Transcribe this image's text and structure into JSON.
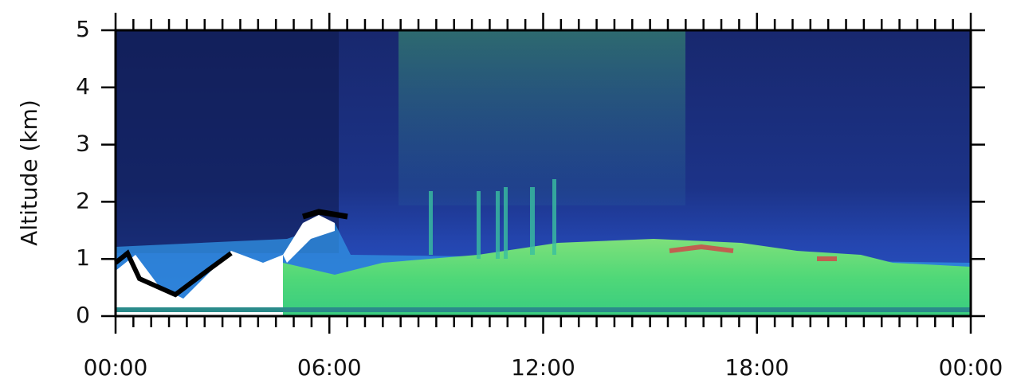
{
  "chart_data": {
    "type": "image",
    "y_label": "Altitude (km)",
    "xlim": [
      0,
      24
    ],
    "xticks": [
      {
        "value": 0,
        "label": "00:00"
      },
      {
        "value": 6,
        "label": "06:00"
      },
      {
        "value": 12,
        "label": "12:00"
      },
      {
        "value": 18,
        "label": "18:00"
      },
      {
        "value": 24,
        "label": "00:00"
      }
    ],
    "xminorticks": [
      0.5,
      1,
      1.5,
      2,
      2.5,
      3,
      3.5,
      4,
      4.5,
      5,
      5.5,
      6.5,
      7,
      7.5,
      8,
      8.5,
      9,
      9.5,
      10,
      10.5,
      11,
      11.5,
      12.5,
      13,
      13.5,
      14,
      14.5,
      15,
      15.5,
      16,
      16.5,
      17,
      17.5,
      18.5,
      19,
      19.5,
      20,
      20.5,
      21,
      21.5,
      22,
      22.5,
      23,
      23.5
    ],
    "ylim": [
      0,
      5
    ],
    "yticks": [
      0,
      1,
      2,
      3,
      4,
      5
    ]
  }
}
